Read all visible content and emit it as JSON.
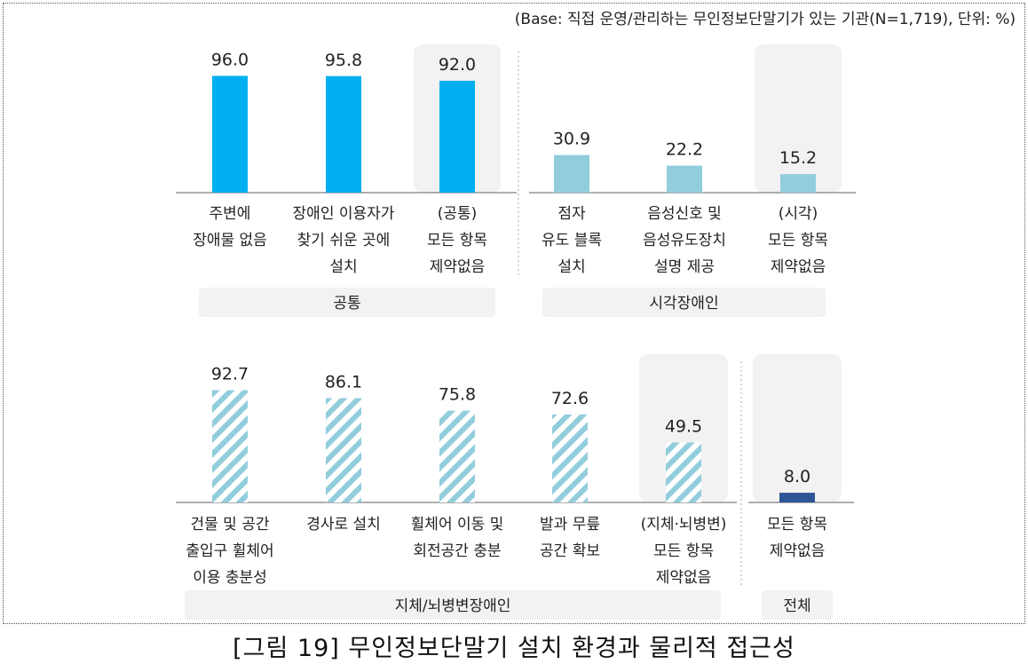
{
  "base_note": "(Base: 직접 운영/관리하는 무인정보단말기가 있는 기관(N=1,719), 단위: %)",
  "caption": "[그림 19] 무인정보단말기 설치 환경과 물리적 접근성",
  "colors": {
    "common": "#00B0F0",
    "visual": "#92CDDC",
    "physical_stripe": "#92CDDC",
    "overall": "#2F5597",
    "highlight_panel": "#F2F2F2",
    "group_label_bg": "#F2F2F2"
  },
  "chart_data": [
    {
      "type": "bar",
      "panel": "top",
      "ylim": [
        0,
        100
      ],
      "groups": [
        {
          "name": "공통",
          "categories": [
            "주변에\n장애물 없음",
            "장애인 이용자가\n찾기 쉬운 곳에\n설치",
            "(공통)\n모든 항목\n제약없음"
          ],
          "values": [
            96.0,
            95.8,
            92.0
          ],
          "style": "solid",
          "color": "common",
          "highlight_index": 2
        },
        {
          "name": "시각장애인",
          "categories": [
            "점자\n유도 블록\n설치",
            "음성신호 및\n음성유도장치\n설명 제공",
            "(시각)\n모든 항목\n제약없음"
          ],
          "values": [
            30.9,
            22.2,
            15.2
          ],
          "style": "solid",
          "color": "visual",
          "highlight_index": 2
        }
      ]
    },
    {
      "type": "bar",
      "panel": "bottom",
      "ylim": [
        0,
        100
      ],
      "groups": [
        {
          "name": "지체/뇌병변장애인",
          "categories": [
            "건물 및 공간\n출입구 휠체어\n이용 충분성",
            "경사로 설치",
            "휠체어 이동 및\n회전공간 충분",
            "발과 무릎\n공간 확보",
            "(지체·뇌병변)\n모든 항목\n제약없음"
          ],
          "values": [
            92.7,
            86.1,
            75.8,
            72.6,
            49.5
          ],
          "style": "striped",
          "color": "physical_stripe",
          "highlight_index": 4
        },
        {
          "name": "전체",
          "categories": [
            "모든 항목\n제약없음"
          ],
          "values": [
            8.0
          ],
          "style": "solid",
          "color": "overall",
          "highlight_index": 0
        }
      ]
    }
  ]
}
